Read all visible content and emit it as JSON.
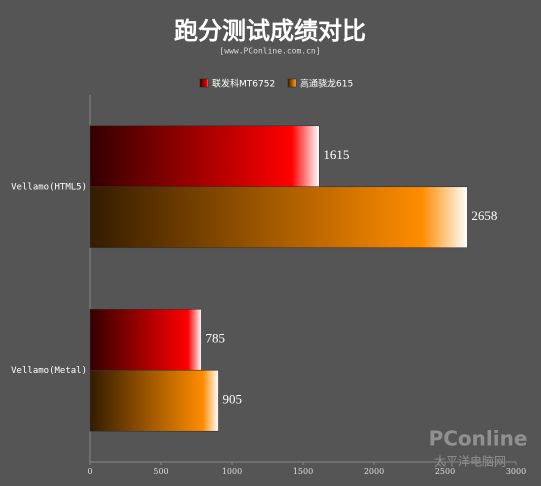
{
  "chart_data": {
    "type": "hbar",
    "title": "跑分测试成绩对比",
    "subtitle": "[www.PConline.com.cn]",
    "categories": [
      "Vellamo(HTML5)",
      "Vellamo(Metal)"
    ],
    "series": [
      {
        "name": "联发科MT6752",
        "color": "#ff0000",
        "values": [
          1615,
          785
        ]
      },
      {
        "name": "高通骁龙615",
        "color": "#ff8c00",
        "values": [
          2658,
          905
        ]
      }
    ],
    "xlim": [
      0,
      3000
    ],
    "xticks": [
      0,
      500,
      1000,
      1500,
      2000,
      2500,
      3000
    ],
    "legend": "top",
    "watermark": [
      "PConline",
      "太平洋电脑网"
    ]
  }
}
